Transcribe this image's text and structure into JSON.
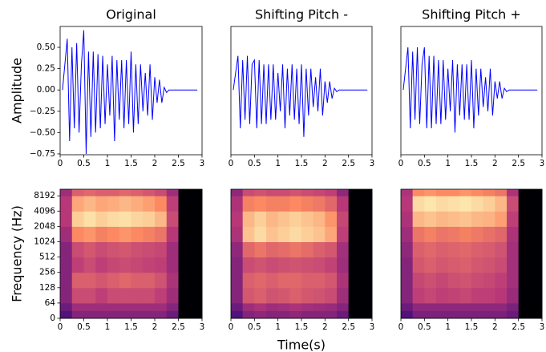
{
  "chart_data": [
    {
      "type": "line",
      "title": "Original",
      "ylabel": "Amplitude",
      "color": "#0000ff",
      "x": [
        0.05,
        0.15,
        0.2,
        0.25,
        0.3,
        0.35,
        0.4,
        0.45,
        0.5,
        0.55,
        0.6,
        0.65,
        0.7,
        0.75,
        0.8,
        0.85,
        0.9,
        0.95,
        1.0,
        1.05,
        1.1,
        1.15,
        1.2,
        1.25,
        1.3,
        1.35,
        1.4,
        1.45,
        1.5,
        1.55,
        1.6,
        1.65,
        1.7,
        1.75,
        1.8,
        1.85,
        1.9,
        1.95,
        2.0,
        2.05,
        2.1,
        2.15,
        2.2,
        2.25,
        2.3,
        2.9
      ],
      "values": [
        0,
        0.6,
        -0.6,
        0.5,
        -0.45,
        0.55,
        -0.5,
        0.3,
        0.7,
        -0.75,
        0.45,
        -0.55,
        0.45,
        -0.5,
        0.42,
        -0.45,
        0.4,
        -0.4,
        0.3,
        -0.3,
        0.4,
        -0.6,
        0.35,
        -0.35,
        0.35,
        -0.45,
        0.35,
        -0.4,
        0.45,
        -0.5,
        0.3,
        -0.4,
        0.3,
        -0.25,
        0.2,
        -0.3,
        0.3,
        -0.35,
        0.15,
        -0.15,
        0.12,
        -0.15,
        0.03,
        -0.03,
        0,
        0
      ],
      "xlim": [
        0,
        3
      ],
      "xticks": [
        0,
        0.5,
        1,
        1.5,
        2,
        2.5,
        3
      ],
      "ylim": [
        -0.76,
        0.745
      ],
      "yticks": [
        {
          "value": -0.75,
          "label": "−0.75"
        },
        {
          "value": -0.5,
          "label": "−0.50"
        },
        {
          "value": -0.25,
          "label": "−0.25"
        },
        {
          "value": 0,
          "label": "0.00"
        },
        {
          "value": 0.25,
          "label": "0.25"
        },
        {
          "value": 0.5,
          "label": "0.50"
        }
      ]
    },
    {
      "type": "line",
      "title": "Shifting Pitch -",
      "color": "#0000ff",
      "x": [
        0.05,
        0.15,
        0.2,
        0.25,
        0.3,
        0.35,
        0.4,
        0.45,
        0.5,
        0.55,
        0.6,
        0.65,
        0.7,
        0.75,
        0.8,
        0.85,
        0.9,
        0.95,
        1.0,
        1.05,
        1.1,
        1.15,
        1.2,
        1.25,
        1.3,
        1.35,
        1.4,
        1.45,
        1.5,
        1.55,
        1.6,
        1.65,
        1.7,
        1.75,
        1.8,
        1.85,
        1.9,
        1.95,
        2.0,
        2.05,
        2.1,
        2.15,
        2.2,
        2.25,
        2.3,
        2.9
      ],
      "values": [
        0,
        0.4,
        -0.45,
        0.35,
        -0.35,
        0.4,
        -0.4,
        0.3,
        0.35,
        -0.45,
        0.35,
        -0.4,
        0.3,
        -0.4,
        0.3,
        -0.35,
        0.3,
        -0.35,
        0.2,
        -0.25,
        0.3,
        -0.45,
        0.25,
        -0.3,
        0.3,
        -0.35,
        0.25,
        -0.4,
        0.3,
        -0.55,
        0.25,
        -0.3,
        0.25,
        -0.2,
        0.15,
        -0.25,
        0.25,
        -0.3,
        0.1,
        -0.15,
        0.1,
        -0.1,
        0.02,
        -0.02,
        0,
        0
      ],
      "xlim": [
        0,
        3
      ],
      "xticks": [
        0,
        0.5,
        1,
        1.5,
        2,
        2.5,
        3
      ],
      "ylim": [
        -0.76,
        0.745
      ]
    },
    {
      "type": "line",
      "title": "Shifting Pitch +",
      "color": "#0000ff",
      "x": [
        0.05,
        0.15,
        0.2,
        0.25,
        0.3,
        0.35,
        0.4,
        0.45,
        0.5,
        0.55,
        0.6,
        0.65,
        0.7,
        0.75,
        0.8,
        0.85,
        0.9,
        0.95,
        1.0,
        1.05,
        1.1,
        1.15,
        1.2,
        1.25,
        1.3,
        1.35,
        1.4,
        1.45,
        1.5,
        1.55,
        1.6,
        1.65,
        1.7,
        1.75,
        1.8,
        1.85,
        1.9,
        1.95,
        2.0,
        2.05,
        2.1,
        2.15,
        2.2,
        2.25,
        2.3,
        2.9
      ],
      "values": [
        0,
        0.5,
        -0.45,
        0.45,
        -0.35,
        0.5,
        -0.4,
        0.3,
        0.5,
        -0.45,
        0.4,
        -0.45,
        0.4,
        -0.4,
        0.35,
        -0.4,
        0.35,
        -0.35,
        0.25,
        -0.25,
        0.35,
        -0.5,
        0.3,
        -0.3,
        0.3,
        -0.35,
        0.3,
        -0.35,
        0.35,
        -0.45,
        0.25,
        -0.3,
        0.25,
        -0.2,
        0.15,
        -0.25,
        0.25,
        -0.3,
        0.1,
        -0.1,
        0.1,
        -0.1,
        0.02,
        -0.02,
        0,
        0
      ],
      "xlim": [
        0,
        3
      ],
      "xticks": [
        0,
        0.5,
        1,
        1.5,
        2,
        2.5,
        3
      ],
      "ylim": [
        -0.76,
        0.745
      ]
    },
    {
      "type": "heatmap",
      "ylabel": "Frequency (Hz)",
      "yscale": "symlog",
      "linthresh": 64,
      "colormap": "magma",
      "clim": [
        -80,
        0
      ],
      "x_edges": [
        0,
        0.25,
        0.5,
        0.75,
        1,
        1.25,
        1.5,
        1.75,
        2,
        2.25,
        2.5,
        2.75,
        3
      ],
      "y_edges": [
        0,
        32,
        64,
        128,
        256,
        512,
        1024,
        2048,
        4096,
        8192,
        11025
      ],
      "z": [
        [
          -60,
          -50,
          -50,
          -50,
          -50,
          -50,
          -50,
          -50,
          -50,
          -55,
          -80,
          -80
        ],
        [
          -55,
          -45,
          -45,
          -45,
          -45,
          -45,
          -45,
          -45,
          -45,
          -50,
          -80,
          -80
        ],
        [
          -50,
          -35,
          -35,
          -38,
          -35,
          -35,
          -35,
          -35,
          -38,
          -45,
          -80,
          -80
        ],
        [
          -50,
          -30,
          -30,
          -32,
          -30,
          -28,
          -30,
          -30,
          -33,
          -42,
          -80,
          -80
        ],
        [
          -50,
          -38,
          -35,
          -38,
          -36,
          -35,
          -36,
          -37,
          -38,
          -45,
          -80,
          -80
        ],
        [
          -50,
          -35,
          -32,
          -35,
          -33,
          -32,
          -34,
          -35,
          -36,
          -45,
          -80,
          -80
        ],
        [
          -45,
          -20,
          -18,
          -22,
          -20,
          -18,
          -20,
          -22,
          -25,
          -40,
          -80,
          -80
        ],
        [
          -40,
          -8,
          -5,
          -8,
          -6,
          -5,
          -7,
          -8,
          -12,
          -35,
          -80,
          -80
        ],
        [
          -40,
          -15,
          -12,
          -15,
          -14,
          -12,
          -14,
          -16,
          -20,
          -38,
          -80,
          -80
        ],
        [
          -45,
          -30,
          -28,
          -30,
          -30,
          -28,
          -30,
          -32,
          -35,
          -45,
          -80,
          -80
        ]
      ],
      "xlim": [
        0,
        3
      ],
      "xticks": [
        0,
        0.5,
        1,
        1.5,
        2,
        2.5,
        3
      ],
      "ylim": [
        0,
        11025
      ],
      "yticks": [
        0,
        64,
        128,
        256,
        512,
        1024,
        2048,
        4096,
        8192
      ]
    },
    {
      "type": "heatmap",
      "xlabel": "Time(s)",
      "yscale": "symlog",
      "linthresh": 64,
      "colormap": "magma",
      "clim": [
        -80,
        0
      ],
      "x_edges": [
        0,
        0.25,
        0.5,
        0.75,
        1,
        1.25,
        1.5,
        1.75,
        2,
        2.25,
        2.5,
        2.75,
        3
      ],
      "y_edges": [
        0,
        32,
        64,
        128,
        256,
        512,
        1024,
        2048,
        4096,
        8192,
        11025
      ],
      "z": [
        [
          -60,
          -50,
          -48,
          -50,
          -50,
          -48,
          -50,
          -50,
          -50,
          -55,
          -80,
          -80
        ],
        [
          -55,
          -45,
          -42,
          -45,
          -44,
          -42,
          -44,
          -45,
          -46,
          -50,
          -80,
          -80
        ],
        [
          -50,
          -32,
          -30,
          -33,
          -32,
          -30,
          -32,
          -33,
          -35,
          -45,
          -80,
          -80
        ],
        [
          -50,
          -30,
          -28,
          -30,
          -28,
          -28,
          -30,
          -30,
          -32,
          -42,
          -80,
          -80
        ],
        [
          -50,
          -35,
          -33,
          -35,
          -34,
          -33,
          -34,
          -35,
          -37,
          -45,
          -80,
          -80
        ],
        [
          -48,
          -28,
          -25,
          -28,
          -27,
          -25,
          -27,
          -30,
          -32,
          -44,
          -80,
          -80
        ],
        [
          -42,
          -10,
          -6,
          -10,
          -8,
          -6,
          -8,
          -10,
          -15,
          -38,
          -80,
          -80
        ],
        [
          -40,
          -12,
          -8,
          -12,
          -10,
          -8,
          -10,
          -12,
          -18,
          -36,
          -80,
          -80
        ],
        [
          -42,
          -22,
          -20,
          -22,
          -22,
          -20,
          -22,
          -24,
          -28,
          -40,
          -80,
          -80
        ],
        [
          -48,
          -35,
          -33,
          -35,
          -35,
          -33,
          -35,
          -36,
          -38,
          -48,
          -80,
          -80
        ]
      ],
      "xlim": [
        0,
        3
      ],
      "xticks": [
        0,
        0.5,
        1,
        1.5,
        2,
        2.5,
        3
      ],
      "ylim": [
        0,
        11025
      ]
    },
    {
      "type": "heatmap",
      "yscale": "symlog",
      "linthresh": 64,
      "colormap": "magma",
      "clim": [
        -80,
        0
      ],
      "x_edges": [
        0,
        0.25,
        0.5,
        0.75,
        1,
        1.25,
        1.5,
        1.75,
        2,
        2.25,
        2.5,
        2.75,
        3
      ],
      "y_edges": [
        0,
        32,
        64,
        128,
        256,
        512,
        1024,
        2048,
        4096,
        8192,
        11025
      ],
      "z": [
        [
          -60,
          -52,
          -52,
          -52,
          -52,
          -52,
          -52,
          -52,
          -52,
          -55,
          -80,
          -80
        ],
        [
          -55,
          -48,
          -48,
          -48,
          -48,
          -48,
          -48,
          -48,
          -48,
          -52,
          -80,
          -80
        ],
        [
          -50,
          -38,
          -36,
          -38,
          -37,
          -36,
          -38,
          -38,
          -40,
          -46,
          -80,
          -80
        ],
        [
          -50,
          -36,
          -34,
          -36,
          -34,
          -33,
          -35,
          -36,
          -38,
          -44,
          -80,
          -80
        ],
        [
          -50,
          -32,
          -30,
          -32,
          -31,
          -30,
          -32,
          -33,
          -35,
          -44,
          -80,
          -80
        ],
        [
          -48,
          -30,
          -28,
          -30,
          -29,
          -28,
          -30,
          -31,
          -33,
          -44,
          -80,
          -80
        ],
        [
          -45,
          -25,
          -22,
          -25,
          -24,
          -22,
          -24,
          -26,
          -28,
          -42,
          -80,
          -80
        ],
        [
          -42,
          -12,
          -10,
          -12,
          -11,
          -10,
          -12,
          -13,
          -16,
          -38,
          -80,
          -80
        ],
        [
          -40,
          -6,
          -4,
          -6,
          -5,
          -4,
          -6,
          -8,
          -12,
          -35,
          -80,
          -80
        ],
        [
          -42,
          -20,
          -18,
          -20,
          -20,
          -18,
          -20,
          -22,
          -25,
          -42,
          -80,
          -80
        ]
      ],
      "xlim": [
        0,
        3
      ],
      "xticks": [
        0,
        0.5,
        1,
        1.5,
        2,
        2.5,
        3
      ],
      "ylim": [
        0,
        11025
      ]
    }
  ]
}
